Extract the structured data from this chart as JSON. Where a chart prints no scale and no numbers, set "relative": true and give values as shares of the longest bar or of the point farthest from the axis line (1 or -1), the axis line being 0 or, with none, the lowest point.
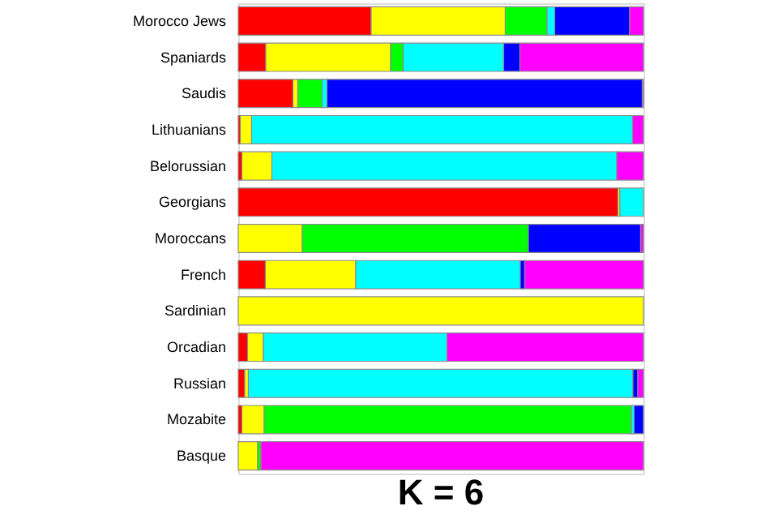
{
  "chart_data": {
    "type": "bar",
    "orientation": "horizontal",
    "stacked": true,
    "relative": true,
    "title": "K = 6",
    "categories": [
      "Morocco Jews",
      "Spaniards",
      "Saudis",
      "Lithuanians",
      "Belorussian",
      "Georgians",
      "Moroccans",
      "French",
      "Sardinian",
      "Orcadian",
      "Russian",
      "Mozabite",
      "Basque"
    ],
    "series": [
      {
        "color": "#ff0000",
        "values": [
          0.328,
          0.068,
          0.135,
          0.005,
          0.009,
          0.937,
          0,
          0.067,
          0,
          0.023,
          0.016,
          0.009,
          0
        ]
      },
      {
        "color": "#ffff00",
        "values": [
          0.331,
          0.308,
          0.012,
          0.028,
          0.074,
          0.005,
          0.158,
          0.223,
          1,
          0.039,
          0.009,
          0.055,
          0.048
        ]
      },
      {
        "color": "#00ff00",
        "values": [
          0.103,
          0.031,
          0.06,
          0,
          0,
          0,
          0.558,
          0,
          0,
          0,
          0,
          0.906,
          0.008
        ]
      },
      {
        "color": "#00ffff",
        "values": [
          0.019,
          0.248,
          0.012,
          0.94,
          0.851,
          0.058,
          0,
          0.406,
          0,
          0.453,
          0.949,
          0.007,
          0
        ]
      },
      {
        "color": "#0000ff",
        "values": [
          0.185,
          0.04,
          0.778,
          0,
          0,
          0,
          0.277,
          0.011,
          0,
          0,
          0.012,
          0.023,
          0
        ]
      },
      {
        "color": "#ff00ff",
        "values": [
          0.034,
          0.305,
          0.003,
          0.027,
          0.066,
          0,
          0.007,
          0.293,
          0,
          0.485,
          0.014,
          0,
          0.944
        ]
      }
    ]
  }
}
